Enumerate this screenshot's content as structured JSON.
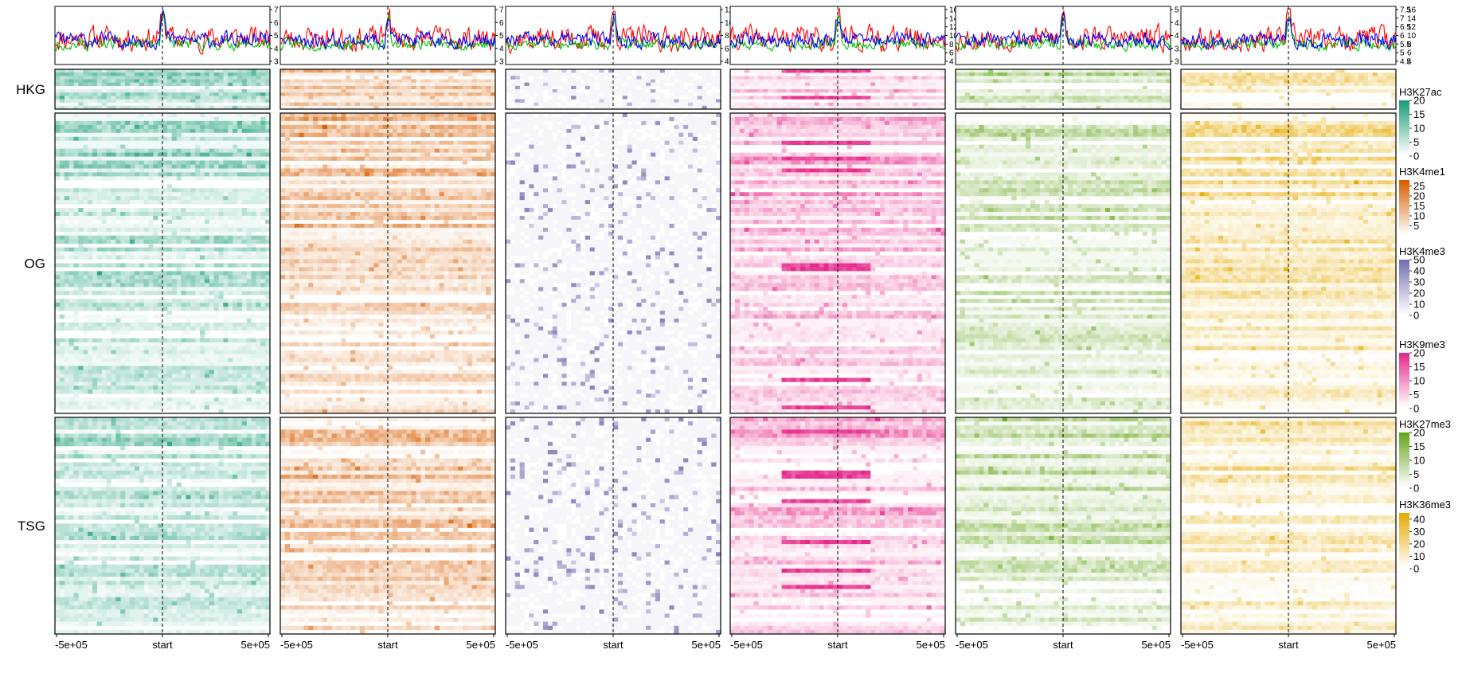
{
  "chart_data": {
    "type": "heatmap",
    "title": "",
    "description_of_layout": "",
    "row_groups": [
      {
        "name": "HKG",
        "rows": 12
      },
      {
        "name": "OG",
        "rows": 76
      },
      {
        "name": "TSG",
        "rows": 53
      }
    ],
    "x_axis": {
      "ticks": [
        "-5e+05",
        "start",
        "5e+05"
      ],
      "range": [
        -500000,
        500000
      ],
      "reference_line": "start"
    },
    "marks": [
      {
        "name": "H3K27ac",
        "color_low": "#ffffff",
        "color_high": "#1b9e77",
        "legend_ticks": [
          20,
          15,
          10,
          5,
          0
        ],
        "legend_range": [
          0,
          20
        ],
        "profile_axis": {
          "ticks": [
            7,
            6,
            5,
            4,
            3
          ]
        },
        "profile_seed": 11
      },
      {
        "name": "H3K4me1",
        "color_low": "#ffffff",
        "color_high": "#d95f02",
        "legend_ticks": [
          25,
          20,
          15,
          10,
          5
        ],
        "legend_range": [
          0,
          28
        ],
        "profile_axis": {
          "ticks": [
            7,
            6,
            5,
            4,
            3
          ]
        },
        "profile_seed": 23
      },
      {
        "name": "H3K4me3",
        "color_low": "#ffffff",
        "color_high": "#7570b3",
        "legend_ticks": [
          50,
          40,
          30,
          20,
          10,
          0
        ],
        "legend_range": [
          0,
          50
        ],
        "profile_axis": {
          "ticks": [
            12,
            10,
            8,
            6,
            4
          ]
        },
        "profile_seed": 37
      },
      {
        "name": "H3K9me3",
        "color_low": "#ffffff",
        "color_high": "#e7298a",
        "legend_ticks": [
          20,
          15,
          10,
          5,
          0
        ],
        "legend_range": [
          0,
          20
        ],
        "profile_axis": {
          "ticks": [
            16,
            14,
            12,
            10,
            8,
            6,
            4
          ]
        },
        "profile_seed": 41
      },
      {
        "name": "H3K27me3",
        "color_low": "#ffffff",
        "color_high": "#66a61e",
        "legend_ticks": [
          20,
          15,
          10,
          5,
          0
        ],
        "legend_range": [
          0,
          20
        ],
        "profile_axis": {
          "ticks": [
            5,
            4.5,
            4,
            3.5,
            3
          ]
        },
        "profile_seed": 53
      },
      {
        "name": "H3K36me3",
        "color_low": "#ffffff",
        "color_high": "#e6ab02",
        "legend_ticks": [
          40,
          30,
          20,
          10,
          0
        ],
        "legend_range": [
          0,
          45
        ],
        "profile_axis": {
          "ticks": [
            7.5,
            7,
            6.5,
            6,
            5.5,
            5,
            4.5
          ]
        },
        "profile_axis_right": {
          "ticks": [
            16,
            14,
            12,
            10,
            8,
            6,
            4
          ]
        },
        "profile_seed": 67
      }
    ],
    "profile_lines": {
      "series_colors": [
        "#ff0000",
        "#00c000",
        "#0000ff"
      ],
      "series_groups": [
        "HKG",
        "OG",
        "TSG"
      ]
    }
  }
}
